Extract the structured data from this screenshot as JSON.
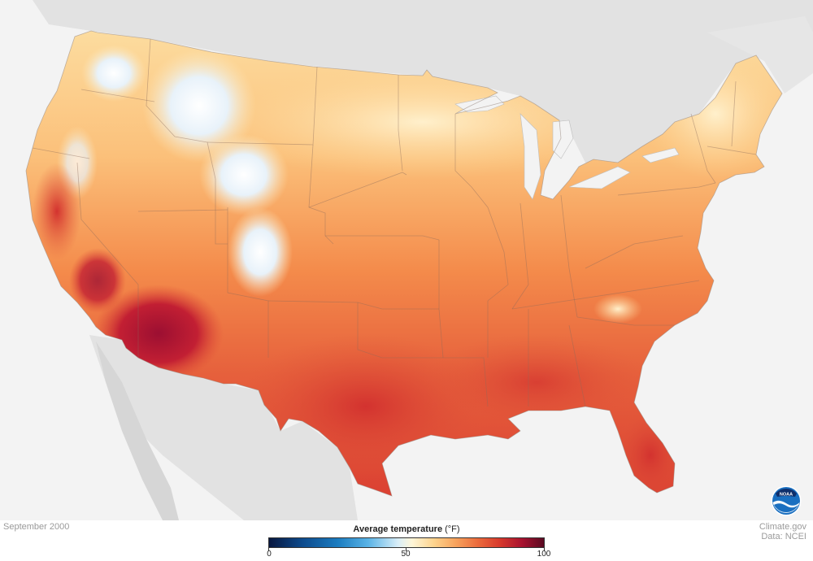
{
  "date_label": "September 2000",
  "legend": {
    "title_bold": "Average temperature",
    "title_unit": "(°F)",
    "tick_labels": [
      "0",
      "50",
      "100"
    ],
    "min": 0,
    "max": 100
  },
  "credits": {
    "site": "Climate.gov",
    "data": "Data: NCEI"
  },
  "logo_text": "NOAA",
  "colors": {
    "ocean": "#f3f3f3",
    "land_outside": "#e2e2e2",
    "cold": "#d9eef8",
    "mild": "#fde2a6",
    "warm": "#f3874a",
    "hot": "#df4a35",
    "hottest": "#a8122f",
    "noaa_blue": "#1a6fc0"
  }
}
